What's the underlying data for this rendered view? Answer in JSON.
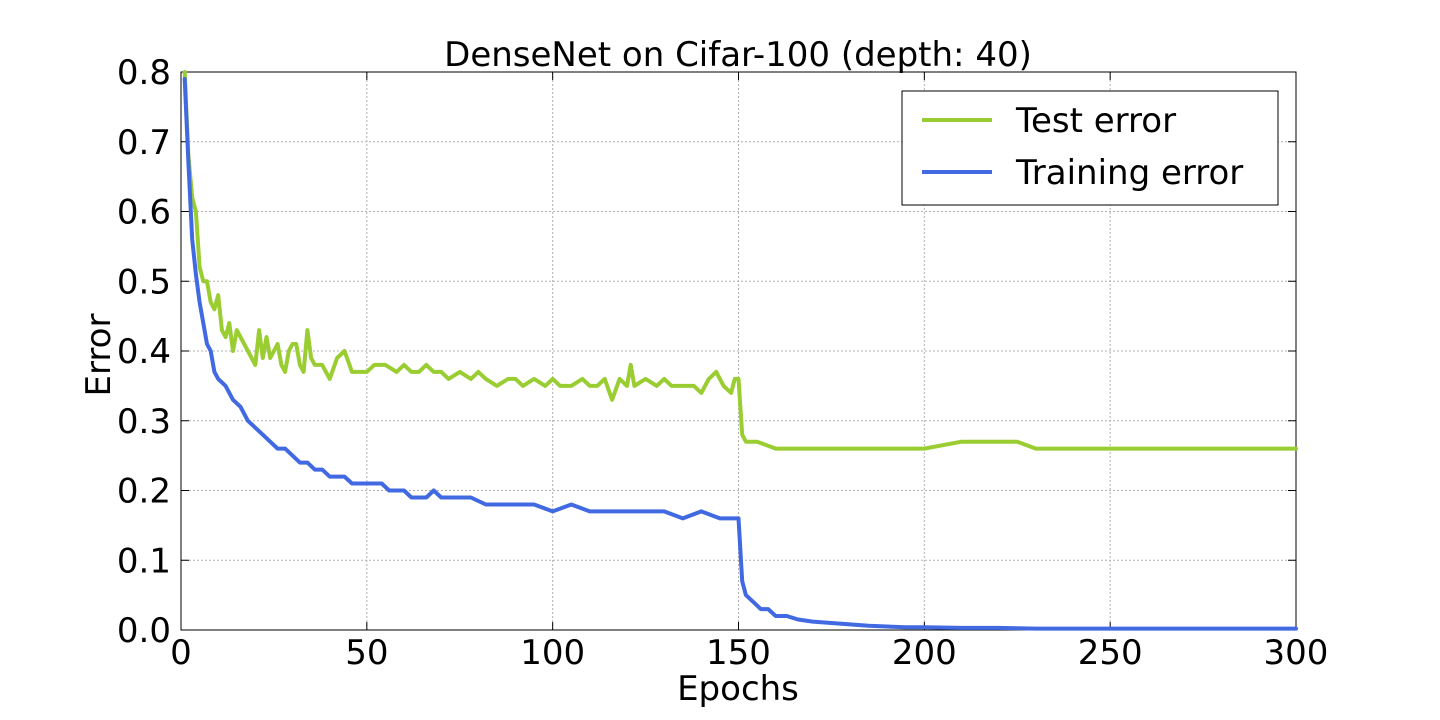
{
  "chart_data": {
    "type": "line",
    "title": "DenseNet on Cifar-100 (depth: 40)",
    "xlabel": "Epochs",
    "ylabel": "Error",
    "xlim": [
      0,
      300
    ],
    "ylim": [
      0.0,
      0.8
    ],
    "xticks": [
      0,
      50,
      100,
      150,
      200,
      250,
      300
    ],
    "xtick_labels": [
      "0",
      "50",
      "100",
      "150",
      "200",
      "250",
      "300"
    ],
    "yticks": [
      0.0,
      0.1,
      0.2,
      0.3,
      0.4,
      0.5,
      0.6,
      0.7,
      0.8
    ],
    "ytick_labels": [
      "0.0",
      "0.1",
      "0.2",
      "0.3",
      "0.4",
      "0.5",
      "0.6",
      "0.7",
      "0.8"
    ],
    "grid": true,
    "legend_position": "top-right",
    "series": [
      {
        "name": "Test error",
        "color": "#9ACD32",
        "x": [
          1,
          2,
          3,
          4,
          5,
          6,
          7,
          8,
          9,
          10,
          11,
          12,
          13,
          14,
          15,
          16,
          18,
          20,
          21,
          22,
          23,
          24,
          25,
          26,
          27,
          28,
          29,
          30,
          31,
          32,
          33,
          34,
          35,
          36,
          38,
          40,
          42,
          44,
          46,
          48,
          50,
          52,
          55,
          58,
          60,
          62,
          64,
          66,
          68,
          70,
          72,
          75,
          78,
          80,
          82,
          85,
          88,
          90,
          92,
          95,
          98,
          100,
          102,
          105,
          108,
          110,
          112,
          114,
          116,
          118,
          120,
          121,
          122,
          125,
          128,
          130,
          132,
          135,
          138,
          140,
          142,
          144,
          146,
          148,
          149,
          150,
          151,
          152,
          155,
          160,
          165,
          170,
          180,
          190,
          200,
          210,
          220,
          225,
          230,
          240,
          250,
          260,
          270,
          280,
          290,
          300
        ],
        "values": [
          0.8,
          0.68,
          0.62,
          0.6,
          0.52,
          0.5,
          0.5,
          0.47,
          0.46,
          0.48,
          0.43,
          0.42,
          0.44,
          0.4,
          0.43,
          0.42,
          0.4,
          0.38,
          0.43,
          0.39,
          0.42,
          0.39,
          0.4,
          0.41,
          0.38,
          0.37,
          0.4,
          0.41,
          0.41,
          0.38,
          0.37,
          0.43,
          0.39,
          0.38,
          0.38,
          0.36,
          0.39,
          0.4,
          0.37,
          0.37,
          0.37,
          0.38,
          0.38,
          0.37,
          0.38,
          0.37,
          0.37,
          0.38,
          0.37,
          0.37,
          0.36,
          0.37,
          0.36,
          0.37,
          0.36,
          0.35,
          0.36,
          0.36,
          0.35,
          0.36,
          0.35,
          0.36,
          0.35,
          0.35,
          0.36,
          0.35,
          0.35,
          0.36,
          0.33,
          0.36,
          0.35,
          0.38,
          0.35,
          0.36,
          0.35,
          0.36,
          0.35,
          0.35,
          0.35,
          0.34,
          0.36,
          0.37,
          0.35,
          0.34,
          0.36,
          0.36,
          0.28,
          0.27,
          0.27,
          0.26,
          0.26,
          0.26,
          0.26,
          0.26,
          0.26,
          0.27,
          0.27,
          0.27,
          0.26,
          0.26,
          0.26,
          0.26,
          0.26,
          0.26,
          0.26,
          0.26
        ]
      },
      {
        "name": "Training error",
        "color": "#4169E1",
        "x": [
          1,
          2,
          3,
          4,
          5,
          6,
          7,
          8,
          9,
          10,
          12,
          14,
          16,
          18,
          20,
          22,
          24,
          26,
          28,
          30,
          32,
          34,
          36,
          38,
          40,
          42,
          44,
          46,
          48,
          50,
          52,
          54,
          56,
          58,
          60,
          62,
          64,
          66,
          68,
          70,
          74,
          78,
          82,
          86,
          90,
          95,
          100,
          105,
          110,
          115,
          120,
          125,
          130,
          135,
          140,
          145,
          148,
          149,
          150,
          151,
          152,
          154,
          156,
          158,
          160,
          163,
          166,
          170,
          175,
          180,
          185,
          190,
          195,
          200,
          210,
          220,
          230,
          240,
          250,
          260,
          270,
          280,
          290,
          300
        ],
        "values": [
          0.79,
          0.67,
          0.56,
          0.51,
          0.47,
          0.44,
          0.41,
          0.4,
          0.37,
          0.36,
          0.35,
          0.33,
          0.32,
          0.3,
          0.29,
          0.28,
          0.27,
          0.26,
          0.26,
          0.25,
          0.24,
          0.24,
          0.23,
          0.23,
          0.22,
          0.22,
          0.22,
          0.21,
          0.21,
          0.21,
          0.21,
          0.21,
          0.2,
          0.2,
          0.2,
          0.19,
          0.19,
          0.19,
          0.2,
          0.19,
          0.19,
          0.19,
          0.18,
          0.18,
          0.18,
          0.18,
          0.17,
          0.18,
          0.17,
          0.17,
          0.17,
          0.17,
          0.17,
          0.16,
          0.17,
          0.16,
          0.16,
          0.16,
          0.16,
          0.07,
          0.05,
          0.04,
          0.03,
          0.03,
          0.02,
          0.02,
          0.015,
          0.012,
          0.01,
          0.008,
          0.006,
          0.005,
          0.004,
          0.004,
          0.003,
          0.003,
          0.002,
          0.002,
          0.002,
          0.002,
          0.002,
          0.002,
          0.002,
          0.002
        ]
      }
    ]
  }
}
